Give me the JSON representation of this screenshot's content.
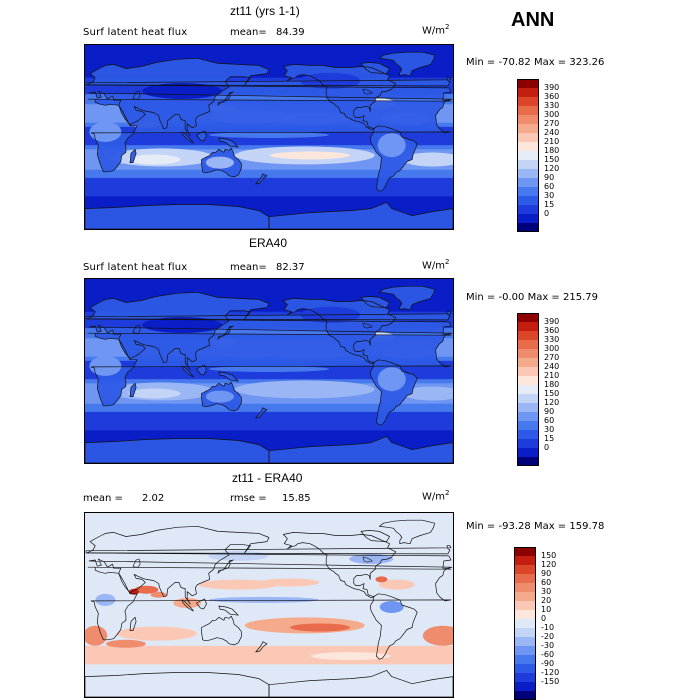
{
  "season": "ANN",
  "palette_abs": [
    "#00007a",
    "#0a1ec8",
    "#1e3cdc",
    "#2d5ae6",
    "#4678ee",
    "#6e96f2",
    "#9bb6f5",
    "#c4d4f7",
    "#e6ecf7",
    "#fde6dc",
    "#fac8b4",
    "#f5aa8c",
    "#f08c6e",
    "#e86b4b",
    "#dc4628",
    "#c31e10",
    "#8c0000"
  ],
  "palette_diff": [
    "#00007a",
    "#0a1ec8",
    "#1e3cdc",
    "#2d5ae6",
    "#4678ee",
    "#6e96f2",
    "#9bb6f5",
    "#c4d4f7",
    "#dfe8f7",
    "#fde6dc",
    "#fac8b4",
    "#f5aa8c",
    "#f08c6e",
    "#e86b4b",
    "#dc4628",
    "#c31e10",
    "#8c0000"
  ],
  "panels": [
    {
      "title": "zt11 (yrs 1-1)",
      "left_label": "Surf latent heat flux",
      "stat1_label": "mean=",
      "stat1_value": "84.39",
      "stat2_label": "",
      "stat2_value": "",
      "units_base": "W/m",
      "units_exp": "2",
      "min_label": "Min =",
      "min_value": "-70.82",
      "max_label": "Max =",
      "max_value": "323.26",
      "colorbar_ticks": [
        "390",
        "360",
        "330",
        "300",
        "270",
        "240",
        "210",
        "180",
        "150",
        "120",
        "90",
        "60",
        "30",
        "15",
        "0"
      ],
      "map_kind": "model"
    },
    {
      "title": "ERA40",
      "left_label": "Surf latent heat flux",
      "stat1_label": "mean=",
      "stat1_value": "82.37",
      "stat2_label": "",
      "stat2_value": "",
      "units_base": "W/m",
      "units_exp": "2",
      "min_label": "Min =",
      "min_value": "-0.00",
      "max_label": "Max =",
      "max_value": "215.79",
      "colorbar_ticks": [
        "390",
        "360",
        "330",
        "300",
        "270",
        "240",
        "210",
        "180",
        "150",
        "120",
        "90",
        "60",
        "30",
        "15",
        "0"
      ],
      "map_kind": "obs"
    },
    {
      "title": "zt11 - ERA40",
      "left_label": "",
      "stat1_label": "mean =",
      "stat1_value": "2.02",
      "stat2_label": "rmse =",
      "stat2_value": "15.85",
      "units_base": "W/m",
      "units_exp": "2",
      "min_label": "Min =",
      "min_value": "-93.28",
      "max_label": "Max =",
      "max_value": "159.78",
      "colorbar_ticks": [
        "150",
        "120",
        "90",
        "60",
        "30",
        "20",
        "10",
        "0",
        "-10",
        "-20",
        "-30",
        "-60",
        "-90",
        "-120",
        "-150"
      ],
      "map_kind": "diff"
    }
  ]
}
